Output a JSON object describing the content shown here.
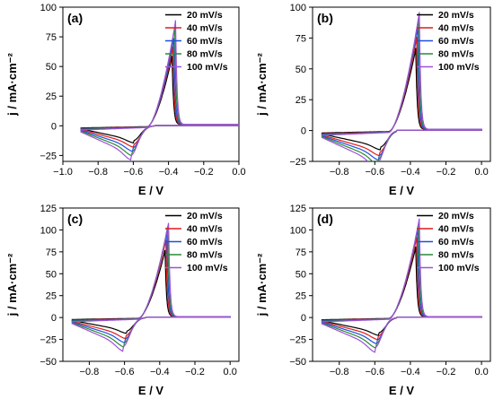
{
  "chart_data": [
    {
      "type": "line",
      "panel_label": "(a)",
      "xlabel": "E / V",
      "ylabel": "j / mA·cm⁻²",
      "xlim": [
        -1.0,
        0.0
      ],
      "ylim": [
        -30,
        100
      ],
      "xticks": [
        "−1.0",
        "−0.8",
        "−0.6",
        "−0.4",
        "−0.2",
        "0.0"
      ],
      "yticks": [
        "100",
        "75",
        "50",
        "25",
        "0",
        "−25"
      ],
      "legend_position": "top-right",
      "series": [
        {
          "name": "20 mV/s",
          "color": "#000000",
          "peak": {
            "x": -0.38,
            "y": 58
          },
          "cathodic": {
            "x": -0.6,
            "y": -12
          }
        },
        {
          "name": "40 mV/s",
          "color": "#e01b1b",
          "peak": {
            "x": -0.375,
            "y": 66
          },
          "cathodic": {
            "x": -0.6,
            "y": -15
          }
        },
        {
          "name": "60 mV/s",
          "color": "#1f4fe0",
          "peak": {
            "x": -0.37,
            "y": 73
          },
          "cathodic": {
            "x": -0.605,
            "y": -18
          }
        },
        {
          "name": "80 mV/s",
          "color": "#2a8a3a",
          "peak": {
            "x": -0.365,
            "y": 82
          },
          "cathodic": {
            "x": -0.61,
            "y": -21
          }
        },
        {
          "name": "100 mV/s",
          "color": "#a050d8",
          "peak": {
            "x": -0.36,
            "y": 88
          },
          "cathodic": {
            "x": -0.615,
            "y": -24
          }
        }
      ]
    },
    {
      "type": "line",
      "panel_label": "(b)",
      "xlabel": "E / V",
      "ylabel": "j / mA·cm⁻²",
      "xlim": [
        -0.95,
        0.05
      ],
      "ylim": [
        -25,
        100
      ],
      "xticks": [
        "−0.8",
        "−0.6",
        "−0.4",
        "−0.2",
        "0.0"
      ],
      "yticks": [
        "100",
        "75",
        "50",
        "25",
        "0",
        "−25"
      ],
      "legend_position": "top-right",
      "series": [
        {
          "name": "20 mV/s",
          "color": "#000000",
          "peak": {
            "x": -0.37,
            "y": 66
          },
          "cathodic": {
            "x": -0.57,
            "y": -13
          }
        },
        {
          "name": "40 mV/s",
          "color": "#e01b1b",
          "peak": {
            "x": -0.365,
            "y": 75
          },
          "cathodic": {
            "x": -0.575,
            "y": -17
          }
        },
        {
          "name": "60 mV/s",
          "color": "#1f4fe0",
          "peak": {
            "x": -0.36,
            "y": 83
          },
          "cathodic": {
            "x": -0.58,
            "y": -20
          }
        },
        {
          "name": "80 mV/s",
          "color": "#2a8a3a",
          "peak": {
            "x": -0.355,
            "y": 90
          },
          "cathodic": {
            "x": -0.585,
            "y": -23
          }
        },
        {
          "name": "100 mV/s",
          "color": "#a050d8",
          "peak": {
            "x": -0.35,
            "y": 95
          },
          "cathodic": {
            "x": -0.59,
            "y": -26
          }
        }
      ]
    },
    {
      "type": "line",
      "panel_label": "(c)",
      "xlabel": "E / V",
      "ylabel": "j / mA·cm⁻²",
      "xlim": [
        -0.95,
        0.05
      ],
      "ylim": [
        -50,
        125
      ],
      "xticks": [
        "−0.8",
        "−0.6",
        "−0.4",
        "−0.2",
        "0.0"
      ],
      "yticks": [
        "125",
        "100",
        "75",
        "50",
        "25",
        "0",
        "−25",
        "−50"
      ],
      "legend_position": "top-right",
      "series": [
        {
          "name": "20 mV/s",
          "color": "#000000",
          "peak": {
            "x": -0.37,
            "y": 76
          },
          "cathodic": {
            "x": -0.59,
            "y": -15
          }
        },
        {
          "name": "40 mV/s",
          "color": "#e01b1b",
          "peak": {
            "x": -0.365,
            "y": 88
          },
          "cathodic": {
            "x": -0.595,
            "y": -20
          }
        },
        {
          "name": "60 mV/s",
          "color": "#1f4fe0",
          "peak": {
            "x": -0.36,
            "y": 97
          },
          "cathodic": {
            "x": -0.6,
            "y": -24
          }
        },
        {
          "name": "80 mV/s",
          "color": "#2a8a3a",
          "peak": {
            "x": -0.355,
            "y": 103
          },
          "cathodic": {
            "x": -0.605,
            "y": -28
          }
        },
        {
          "name": "100 mV/s",
          "color": "#a050d8",
          "peak": {
            "x": -0.35,
            "y": 107
          },
          "cathodic": {
            "x": -0.61,
            "y": -32
          }
        }
      ]
    },
    {
      "type": "line",
      "panel_label": "(d)",
      "xlabel": "E / V",
      "ylabel": "j / mA·cm⁻²",
      "xlim": [
        -0.95,
        0.05
      ],
      "ylim": [
        -50,
        125
      ],
      "xticks": [
        "−0.8",
        "−0.6",
        "−0.4",
        "−0.2",
        "0.0"
      ],
      "yticks": [
        "125",
        "100",
        "75",
        "50",
        "25",
        "0",
        "−25",
        "−50"
      ],
      "legend_position": "top-right",
      "series": [
        {
          "name": "20 mV/s",
          "color": "#000000",
          "peak": {
            "x": -0.37,
            "y": 80
          },
          "cathodic": {
            "x": -0.58,
            "y": -17
          }
        },
        {
          "name": "40 mV/s",
          "color": "#e01b1b",
          "peak": {
            "x": -0.365,
            "y": 91
          },
          "cathodic": {
            "x": -0.585,
            "y": -21
          }
        },
        {
          "name": "60 mV/s",
          "color": "#1f4fe0",
          "peak": {
            "x": -0.36,
            "y": 100
          },
          "cathodic": {
            "x": -0.59,
            "y": -25
          }
        },
        {
          "name": "80 mV/s",
          "color": "#2a8a3a",
          "peak": {
            "x": -0.355,
            "y": 106
          },
          "cathodic": {
            "x": -0.595,
            "y": -29
          }
        },
        {
          "name": "100 mV/s",
          "color": "#a050d8",
          "peak": {
            "x": -0.35,
            "y": 112
          },
          "cathodic": {
            "x": -0.6,
            "y": -33
          }
        }
      ]
    }
  ]
}
